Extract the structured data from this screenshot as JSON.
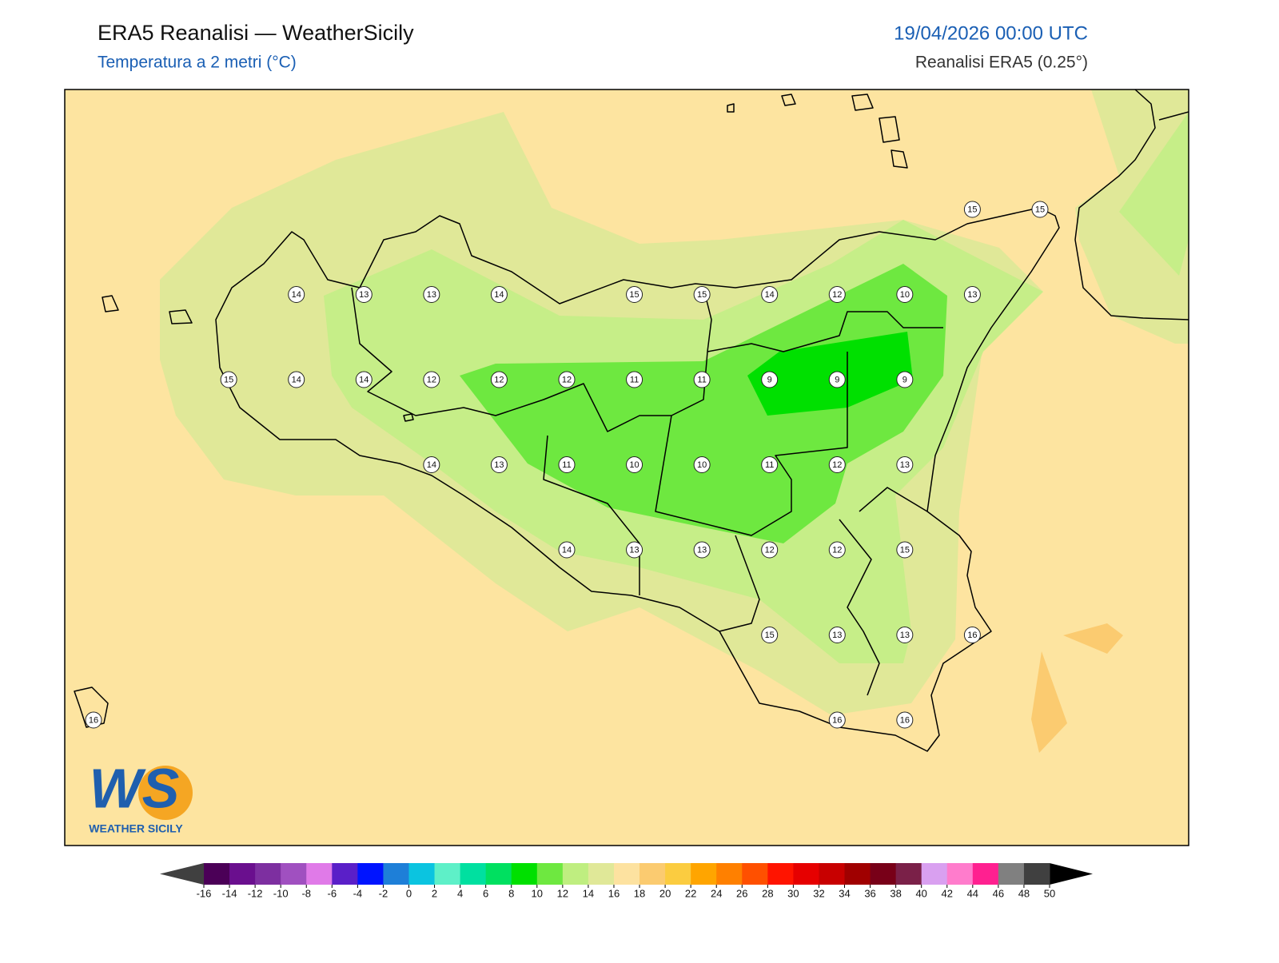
{
  "header": {
    "title": "ERA5 Reanalisi — WeatherSicily",
    "subtitle": "Temperatura a 2 metri (°C)",
    "date": "19/04/2026 00:00 UTC",
    "source": "Reanalisi ERA5 (0.25°)"
  },
  "grid_labels": [
    [
      null,
      null,
      null,
      null,
      null,
      null,
      null,
      null,
      null,
      null,
      null,
      null,
      null,
      15,
      15
    ],
    [
      null,
      null,
      null,
      14,
      13,
      13,
      14,
      null,
      15,
      15,
      14,
      12,
      10,
      13,
      null
    ],
    [
      null,
      null,
      15,
      14,
      14,
      12,
      12,
      12,
      11,
      11,
      9,
      9,
      9,
      null,
      null
    ],
    [
      null,
      null,
      null,
      null,
      null,
      14,
      13,
      11,
      10,
      10,
      11,
      12,
      13,
      null,
      null
    ],
    [
      null,
      null,
      null,
      null,
      null,
      null,
      null,
      14,
      13,
      13,
      12,
      12,
      15,
      null,
      null
    ],
    [
      null,
      null,
      null,
      null,
      null,
      null,
      null,
      null,
      null,
      null,
      15,
      13,
      13,
      16,
      null
    ],
    [
      16,
      null,
      null,
      null,
      null,
      null,
      null,
      null,
      null,
      null,
      null,
      16,
      16,
      null,
      null
    ]
  ],
  "colorbar": {
    "ticks": [
      -16,
      -14,
      -12,
      -10,
      -8,
      -6,
      -4,
      -2,
      0,
      2,
      4,
      6,
      8,
      10,
      12,
      14,
      16,
      18,
      20,
      22,
      24,
      26,
      28,
      30,
      32,
      34,
      36,
      38,
      40,
      42,
      44,
      46,
      48,
      50
    ],
    "colors": [
      "#4b0057",
      "#6a0f8e",
      "#7d2fa0",
      "#a050c0",
      "#e07ae8",
      "#5a1fc8",
      "#0014ff",
      "#1e7fd8",
      "#0bc4e0",
      "#5ef0c8",
      "#00e0a0",
      "#00e060",
      "#00e000",
      "#6ee840",
      "#bfee80",
      "#e0e898",
      "#fde2a0",
      "#fbcb70",
      "#fbcc40",
      "#ffa500",
      "#ff8000",
      "#ff5000",
      "#ff1400",
      "#e60000",
      "#c80000",
      "#a00000",
      "#780018",
      "#7a2048",
      "#d9a0f0",
      "#ff7ccc",
      "#ff2090",
      "#808080",
      "#404040"
    ],
    "under_color": "#404040",
    "over_color": "#000000"
  },
  "logo": {
    "mark": "WS",
    "name": "WEATHER SICILY"
  }
}
